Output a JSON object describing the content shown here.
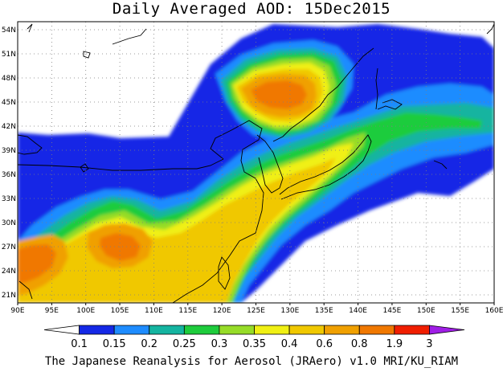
{
  "title": "Daily Averaged AOD: 15Dec2015",
  "credit": "The Japanese Reanalysis for Aerosol (JRAero) v1.0 MRI/KU_RIAM",
  "map": {
    "lon_range": [
      90,
      160
    ],
    "lat_range": [
      20,
      55
    ],
    "lon_ticks": [
      "90E",
      "95E",
      "100E",
      "105E",
      "110E",
      "115E",
      "120E",
      "125E",
      "130E",
      "135E",
      "140E",
      "145E",
      "150E",
      "155E",
      "160E"
    ],
    "lat_ticks": [
      "21N",
      "24N",
      "27N",
      "30N",
      "33N",
      "36N",
      "39N",
      "42N",
      "45N",
      "48N",
      "51N",
      "54N"
    ],
    "grid": true
  },
  "colorbar": {
    "labels": [
      "0.1",
      "0.15",
      "0.2",
      "0.25",
      "0.3",
      "0.35",
      "0.4",
      "0.6",
      "0.8",
      "1.9",
      "3"
    ],
    "colors": [
      "#ffffff",
      "#1428e6",
      "#1e8cff",
      "#14b4a0",
      "#1ecc3c",
      "#96dc28",
      "#f0f014",
      "#f0c800",
      "#f0a000",
      "#f07800",
      "#f01e00",
      "#a01ee6"
    ]
  }
}
